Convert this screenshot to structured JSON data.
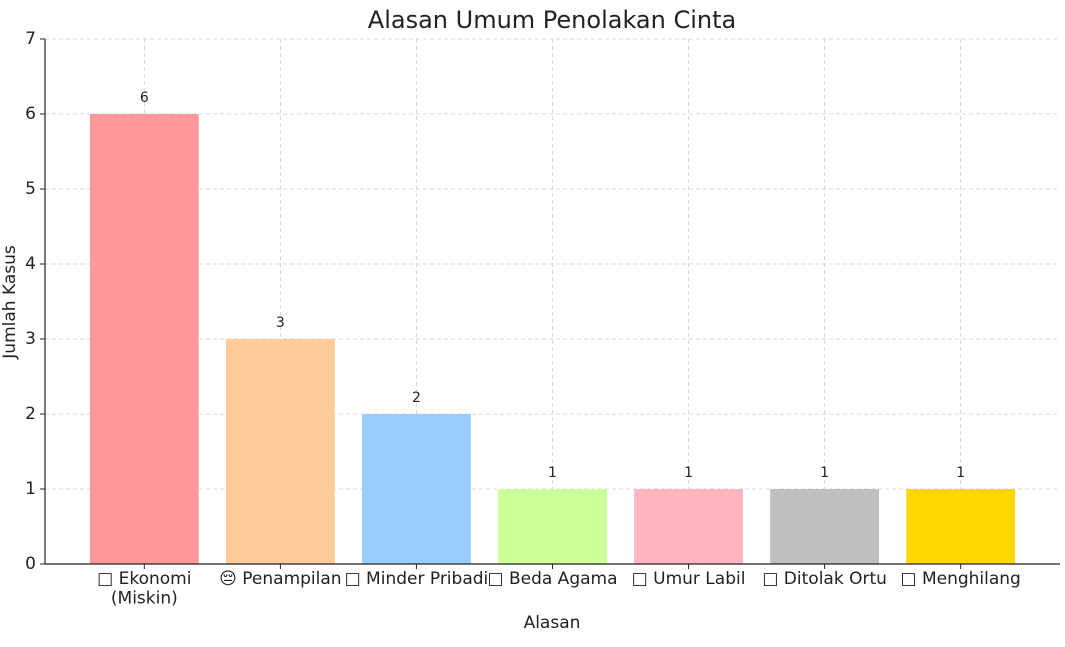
{
  "chart_data": {
    "type": "bar",
    "title": "Alasan Umum Penolakan Cinta",
    "x_label": "Alasan",
    "y_label": "Jumlah Kasus",
    "categories": [
      "□ Ekonomi\n(Miskin)",
      "😔 Penampilan",
      "□ Minder Pribadi",
      "□ Beda Agama",
      "□ Umur Labil",
      "□ Ditolak Ortu",
      "□ Menghilang"
    ],
    "values": [
      6,
      3,
      2,
      1,
      1,
      1,
      1
    ],
    "colors": [
      "#ff9999",
      "#ffcc99",
      "#99ccff",
      "#ccff99",
      "#ffb6c1",
      "#c0c0c0",
      "#ffd700"
    ],
    "ylim": [
      0,
      7
    ],
    "yticks": [
      0,
      1,
      2,
      3,
      4,
      5,
      6,
      7
    ],
    "grid": true
  }
}
